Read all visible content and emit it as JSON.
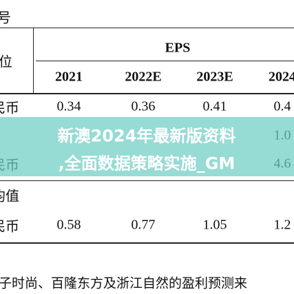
{
  "table": {
    "corner": "号",
    "unit_header": "位",
    "group_header": "EPS",
    "columns": [
      "2021",
      "2022E",
      "2023E",
      "2024"
    ],
    "rows": [
      [
        "民币",
        "0.34",
        "0.36",
        "0.41",
        "0.4"
      ],
      [
        "",
        "",
        "",
        "",
        "1.0"
      ],
      [
        "民币",
        "",
        "",
        "",
        "4.6"
      ],
      [
        "均值",
        "",
        "",
        "",
        ""
      ],
      [
        "民币",
        "0.58",
        "0.77",
        "1.05",
        "1.2"
      ]
    ]
  },
  "footnote": "子时尚、百隆东方及浙江自然的盈利预测来",
  "overlay": {
    "line1": "新澳2024年最新版资料",
    "line2": ",全面数据策略实施_GM"
  }
}
